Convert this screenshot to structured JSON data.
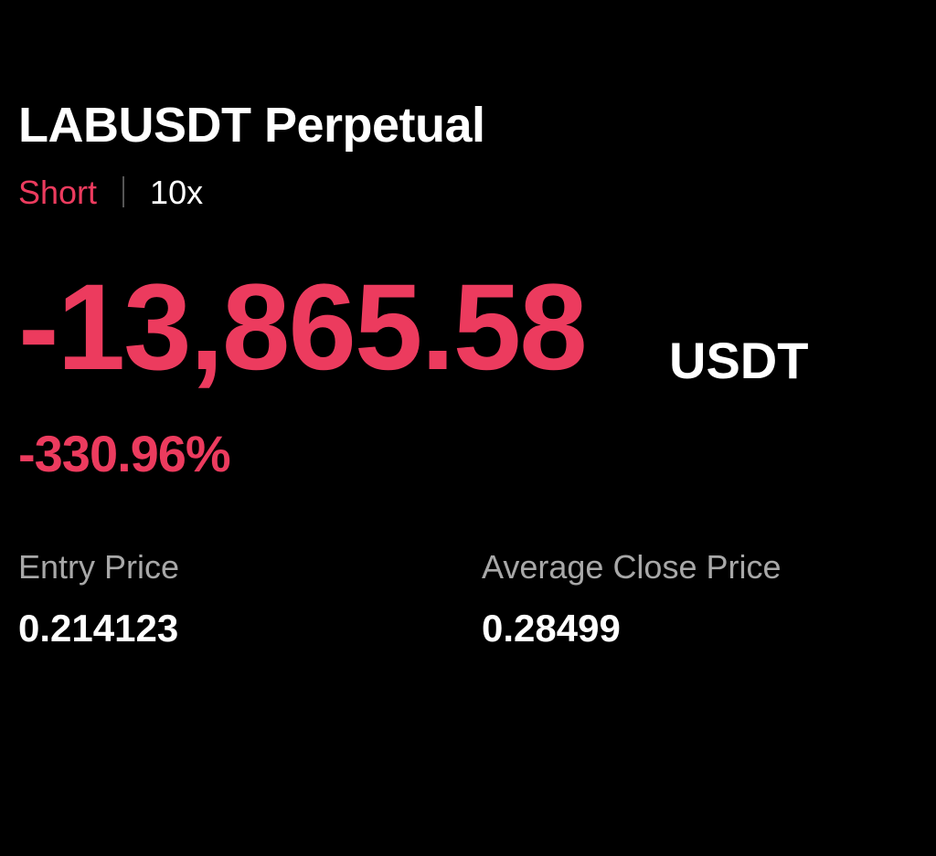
{
  "position": {
    "title": "LABUSDT Perpetual",
    "side": "Short",
    "leverage": "10x",
    "pnl": "-13,865.58",
    "pnl_unit": "USDT",
    "roi": "-330.96%",
    "entry_price_label": "Entry Price",
    "entry_price": "0.214123",
    "avg_close_label": "Average Close Price",
    "avg_close_price": "0.28499"
  },
  "colors": {
    "loss": "#ec3b5e",
    "text": "#ffffff",
    "muted": "#a8a8a8",
    "background": "#000000"
  }
}
